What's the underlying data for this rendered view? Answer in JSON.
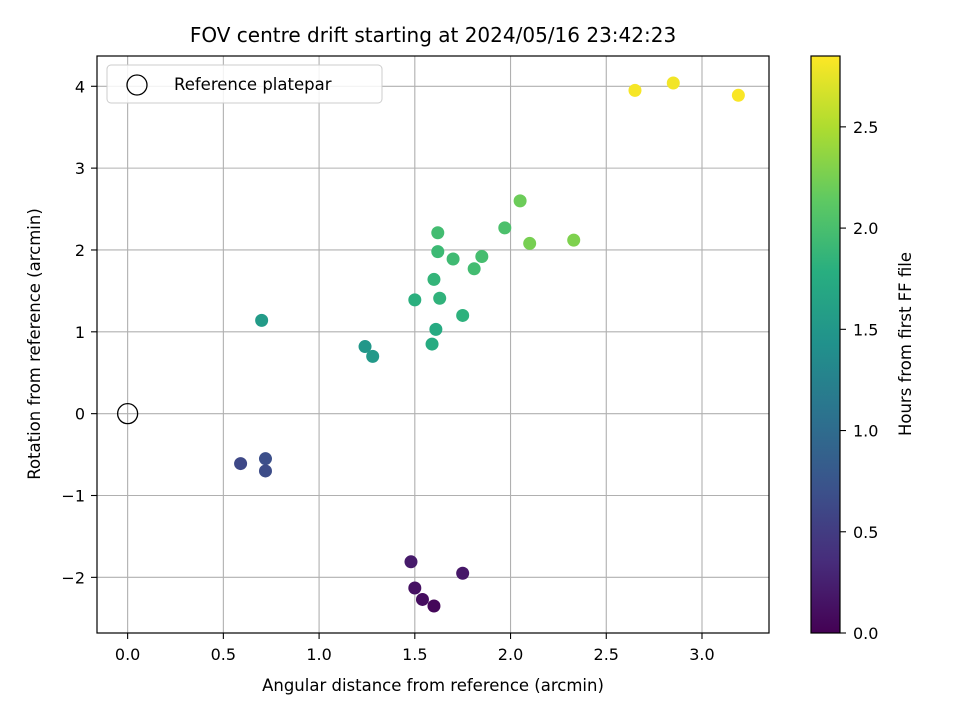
{
  "chart_data": {
    "type": "scatter",
    "title": "FOV centre drift starting at 2024/05/16 23:42:23",
    "xlabel": "Angular distance from reference (arcmin)",
    "ylabel": "Rotation from reference (arcmin)",
    "xlim": [
      -0.16,
      3.35
    ],
    "ylim": [
      -2.68,
      4.37
    ],
    "xticks": [
      0.0,
      0.5,
      1.0,
      1.5,
      2.0,
      2.5,
      3.0
    ],
    "xtick_labels": [
      "0.0",
      "0.5",
      "1.0",
      "1.5",
      "2.0",
      "2.5",
      "3.0"
    ],
    "yticks": [
      -2,
      -1,
      0,
      1,
      2,
      3,
      4
    ],
    "ytick_labels": [
      "−2",
      "−1",
      "0",
      "1",
      "2",
      "3",
      "4"
    ],
    "grid": true,
    "legend": {
      "position": "top-left",
      "entries": [
        "Reference platepar"
      ]
    },
    "reference_point": {
      "x": 0.0,
      "y": 0.0,
      "label": "Reference platepar"
    },
    "colorbar": {
      "label": "Hours from first FF file",
      "colormap": "viridis",
      "range": [
        0.0,
        2.85
      ],
      "ticks": [
        0.0,
        0.5,
        1.0,
        1.5,
        2.0,
        2.5
      ],
      "tick_labels": [
        "0.0",
        "0.5",
        "1.0",
        "1.5",
        "2.0",
        "2.5"
      ]
    },
    "points": [
      {
        "x": 1.48,
        "y": -1.81,
        "hours": 0.2
      },
      {
        "x": 1.75,
        "y": -1.95,
        "hours": 0.18
      },
      {
        "x": 1.5,
        "y": -2.13,
        "hours": 0.13
      },
      {
        "x": 1.54,
        "y": -2.27,
        "hours": 0.1
      },
      {
        "x": 1.6,
        "y": -2.35,
        "hours": 0.05
      },
      {
        "x": 0.59,
        "y": -0.61,
        "hours": 0.62
      },
      {
        "x": 0.72,
        "y": -0.55,
        "hours": 0.68
      },
      {
        "x": 0.72,
        "y": -0.7,
        "hours": 0.65
      },
      {
        "x": 0.7,
        "y": 1.14,
        "hours": 1.55
      },
      {
        "x": 1.24,
        "y": 0.82,
        "hours": 1.5
      },
      {
        "x": 1.28,
        "y": 0.7,
        "hours": 1.52
      },
      {
        "x": 1.59,
        "y": 0.85,
        "hours": 1.75
      },
      {
        "x": 1.61,
        "y": 1.03,
        "hours": 1.73
      },
      {
        "x": 1.75,
        "y": 1.2,
        "hours": 1.82
      },
      {
        "x": 1.5,
        "y": 1.39,
        "hours": 1.8
      },
      {
        "x": 1.63,
        "y": 1.41,
        "hours": 1.84
      },
      {
        "x": 1.6,
        "y": 1.64,
        "hours": 1.86
      },
      {
        "x": 1.81,
        "y": 1.77,
        "hours": 1.96
      },
      {
        "x": 1.7,
        "y": 1.89,
        "hours": 1.94
      },
      {
        "x": 1.62,
        "y": 1.98,
        "hours": 1.92
      },
      {
        "x": 1.85,
        "y": 1.92,
        "hours": 1.98
      },
      {
        "x": 1.62,
        "y": 2.21,
        "hours": 1.96
      },
      {
        "x": 1.97,
        "y": 2.27,
        "hours": 2.02
      },
      {
        "x": 2.05,
        "y": 2.6,
        "hours": 2.2
      },
      {
        "x": 2.1,
        "y": 2.08,
        "hours": 2.25
      },
      {
        "x": 2.33,
        "y": 2.12,
        "hours": 2.28
      },
      {
        "x": 2.65,
        "y": 3.95,
        "hours": 2.82
      },
      {
        "x": 2.85,
        "y": 4.04,
        "hours": 2.8
      },
      {
        "x": 3.19,
        "y": 3.89,
        "hours": 2.83
      }
    ]
  }
}
